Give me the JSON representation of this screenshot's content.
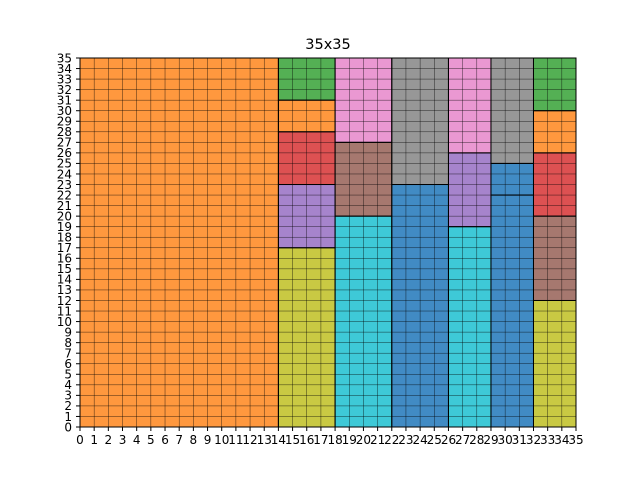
{
  "chart_data": {
    "type": "heatmap",
    "title": "35x35",
    "xlim": [
      0,
      35
    ],
    "ylim": [
      0,
      35
    ],
    "xticks": [
      "0",
      "1",
      "2",
      "3",
      "4",
      "5",
      "6",
      "7",
      "8",
      "9",
      "10",
      "11",
      "12",
      "13",
      "14",
      "15",
      "16",
      "17",
      "18",
      "19",
      "20",
      "21",
      "22",
      "23",
      "24",
      "25",
      "26",
      "27",
      "28",
      "29",
      "30",
      "31",
      "32",
      "33",
      "34",
      "35"
    ],
    "yticks": [
      "0",
      "1",
      "2",
      "3",
      "4",
      "5",
      "6",
      "7",
      "8",
      "9",
      "10",
      "11",
      "12",
      "13",
      "14",
      "15",
      "16",
      "17",
      "18",
      "19",
      "20",
      "21",
      "22",
      "23",
      "24",
      "25",
      "26",
      "27",
      "28",
      "29",
      "30",
      "31",
      "32",
      "33",
      "34",
      "35"
    ],
    "grid": true,
    "rectangles": [
      {
        "x": 0,
        "y": 0,
        "w": 14,
        "h": 35,
        "color": "#ff983e"
      },
      {
        "x": 14,
        "y": 0,
        "w": 4,
        "h": 17,
        "color": "#c9c943"
      },
      {
        "x": 14,
        "y": 17,
        "w": 4,
        "h": 6,
        "color": "#a684cc"
      },
      {
        "x": 14,
        "y": 23,
        "w": 4,
        "h": 5,
        "color": "#dd5152"
      },
      {
        "x": 14,
        "y": 28,
        "w": 4,
        "h": 3,
        "color": "#ff983e"
      },
      {
        "x": 14,
        "y": 31,
        "w": 4,
        "h": 4,
        "color": "#54b054"
      },
      {
        "x": 18,
        "y": 0,
        "w": 4,
        "h": 20,
        "color": "#3ec9d7"
      },
      {
        "x": 18,
        "y": 20,
        "w": 4,
        "h": 7,
        "color": "#a6786f"
      },
      {
        "x": 18,
        "y": 27,
        "w": 4,
        "h": 8,
        "color": "#ea98d2"
      },
      {
        "x": 22,
        "y": 0,
        "w": 4,
        "h": 23,
        "color": "#418bc4"
      },
      {
        "x": 22,
        "y": 23,
        "w": 4,
        "h": 12,
        "color": "#979797"
      },
      {
        "x": 26,
        "y": 0,
        "w": 3,
        "h": 19,
        "color": "#3ec9d7"
      },
      {
        "x": 26,
        "y": 19,
        "w": 3,
        "h": 7,
        "color": "#a684cc"
      },
      {
        "x": 26,
        "y": 26,
        "w": 3,
        "h": 9,
        "color": "#ea98d2"
      },
      {
        "x": 29,
        "y": 0,
        "w": 3,
        "h": 22,
        "color": "#418bc4"
      },
      {
        "x": 29,
        "y": 22,
        "w": 3,
        "h": 3,
        "color": "#418bc4"
      },
      {
        "x": 29,
        "y": 25,
        "w": 3,
        "h": 10,
        "color": "#979797"
      },
      {
        "x": 32,
        "y": 0,
        "w": 3,
        "h": 12,
        "color": "#c9c943"
      },
      {
        "x": 32,
        "y": 12,
        "w": 3,
        "h": 8,
        "color": "#a6786f"
      },
      {
        "x": 32,
        "y": 20,
        "w": 3,
        "h": 6,
        "color": "#dd5152"
      },
      {
        "x": 32,
        "y": 26,
        "w": 3,
        "h": 4,
        "color": "#ff983e"
      },
      {
        "x": 32,
        "y": 30,
        "w": 3,
        "h": 5,
        "color": "#54b054"
      }
    ]
  }
}
